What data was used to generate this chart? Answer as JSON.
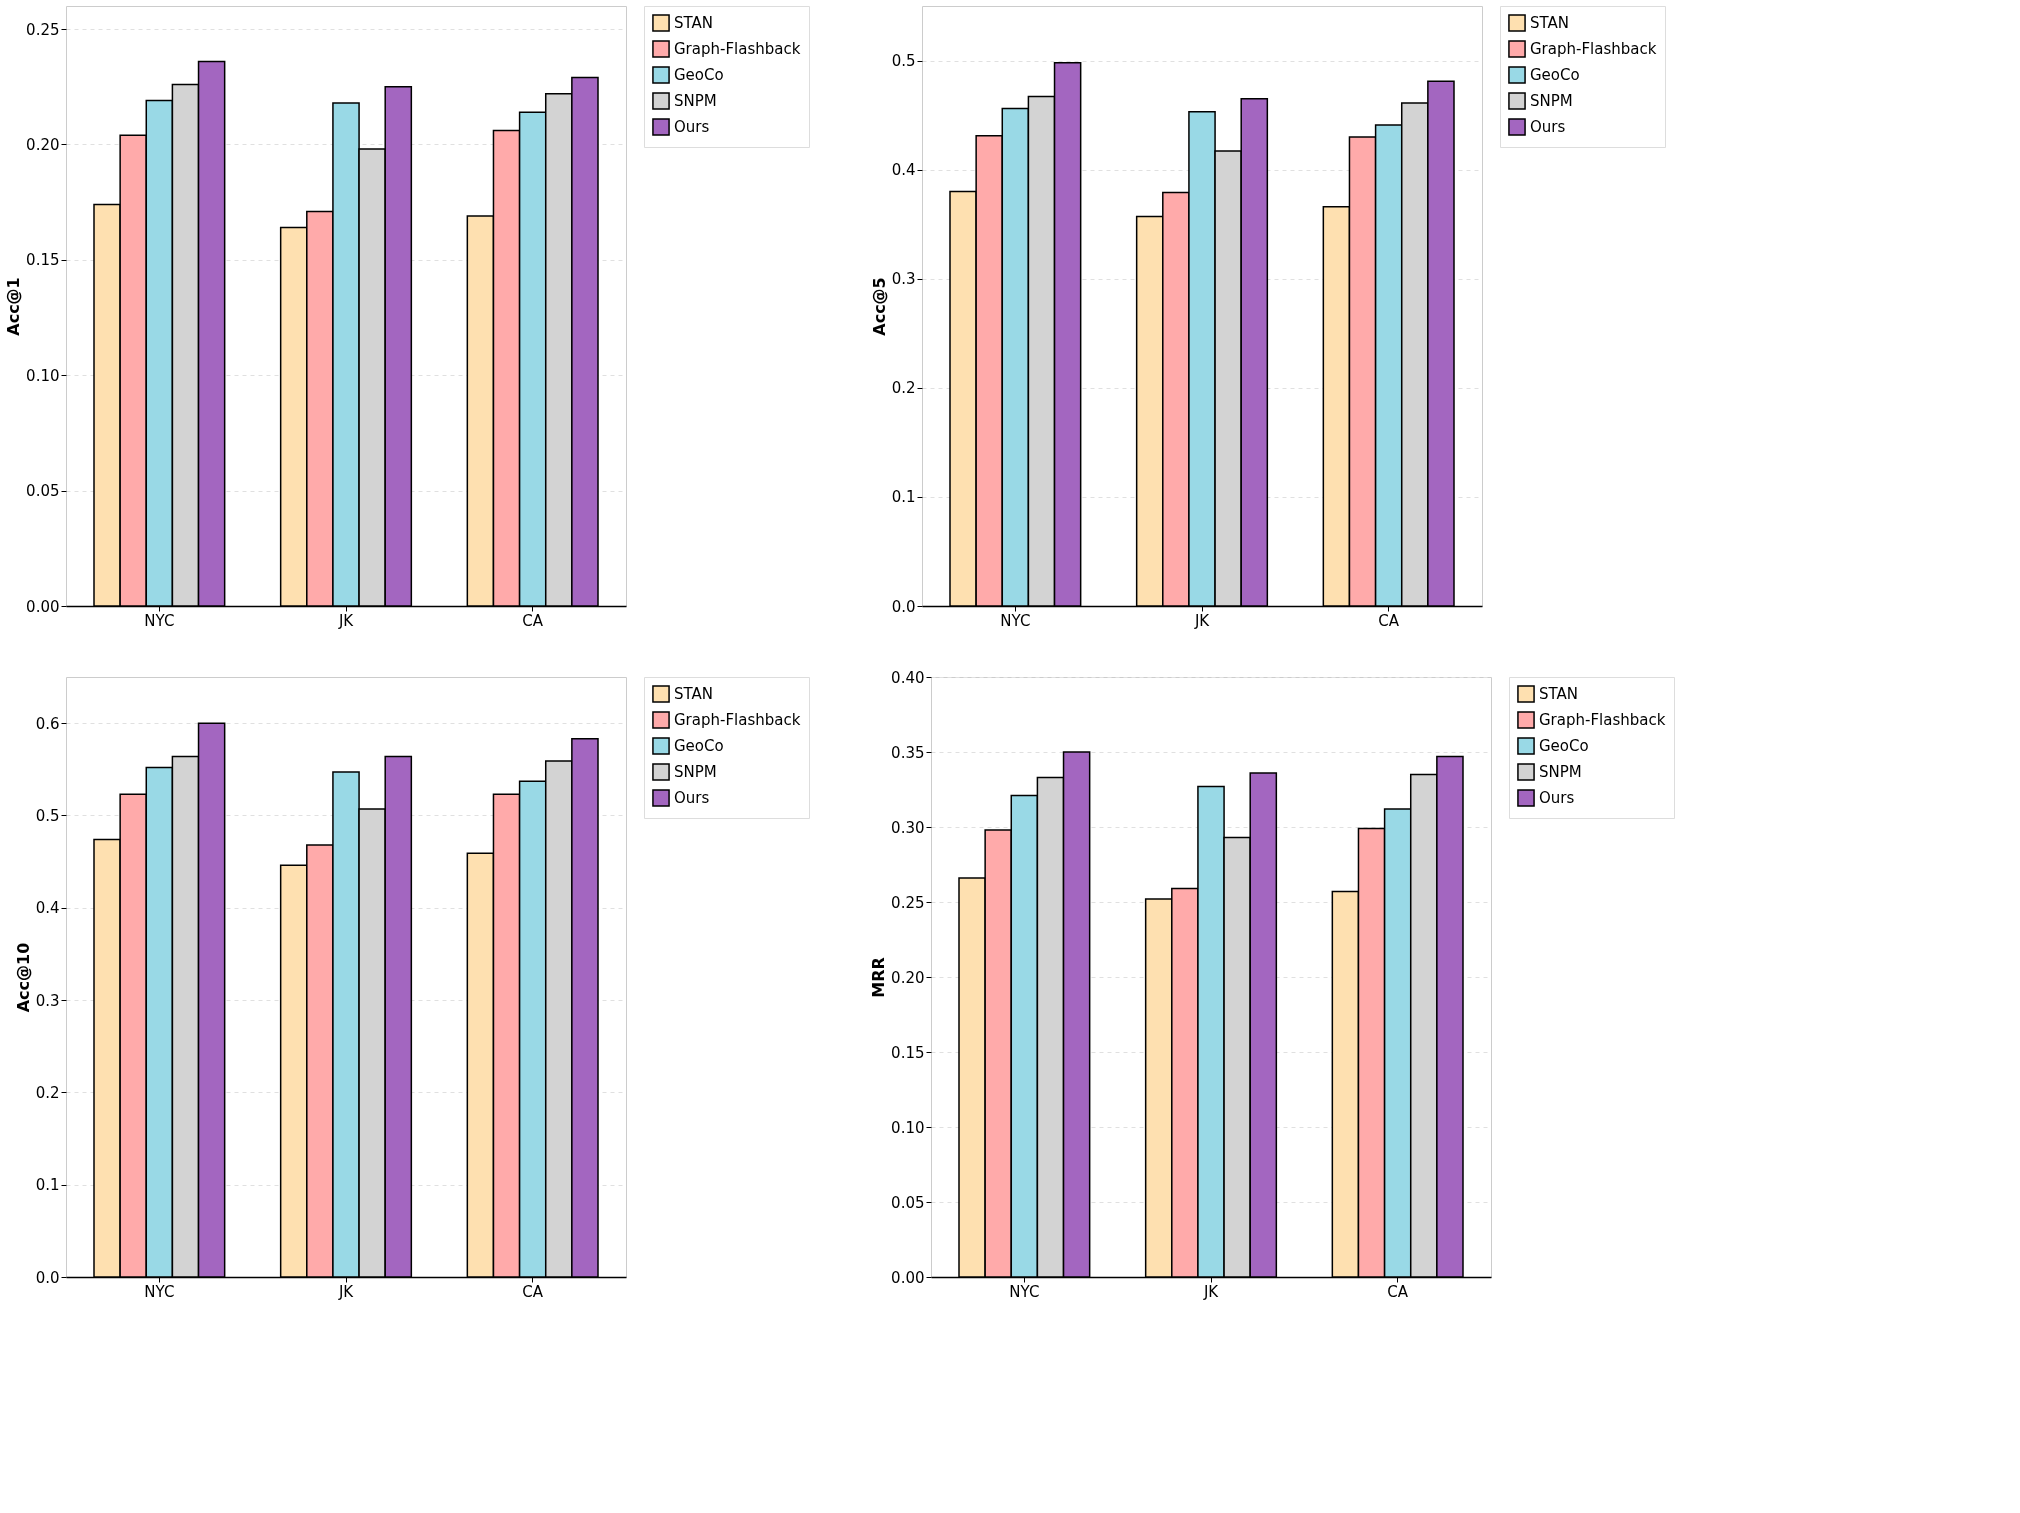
{
  "chart_data": [
    {
      "type": "bar",
      "ylabel": "Acc@1",
      "categories": [
        "NYC",
        "JK",
        "CA"
      ],
      "ylim": [
        0,
        0.26
      ],
      "yticks": [
        {
          "value": 0,
          "label": "0.00"
        },
        0.05,
        {
          "value": 0.1,
          "label": "0.10"
        },
        0.15,
        {
          "value": 0.2,
          "label": "0.20"
        },
        0.25
      ],
      "grid": "y",
      "legend": "right",
      "series": [
        {
          "name": "STAN",
          "color": "#fee0b0",
          "values": [
            0.174,
            0.164,
            0.169
          ]
        },
        {
          "name": "Graph-Flashback",
          "color": "#ffaaaa",
          "values": [
            0.204,
            0.171,
            0.206
          ]
        },
        {
          "name": "GeoCo",
          "color": "#99d9e6",
          "values": [
            0.219,
            0.218,
            0.214
          ]
        },
        {
          "name": "SNPM",
          "color": "#d3d3d3",
          "values": [
            0.226,
            0.198,
            0.222
          ]
        },
        {
          "name": "Ours",
          "color": "#a366c0",
          "values": [
            0.236,
            0.225,
            0.229
          ]
        }
      ]
    },
    {
      "type": "bar",
      "ylabel": "Acc@5",
      "categories": [
        "NYC",
        "JK",
        "CA"
      ],
      "ylim": [
        0,
        0.55
      ],
      "yticks": [
        {
          "value": 0,
          "label": "0.0"
        },
        0.1,
        0.2,
        0.3,
        0.4,
        0.5
      ],
      "grid": "y",
      "legend": "right",
      "series": [
        {
          "name": "STAN",
          "color": "#fee0b0",
          "values": [
            0.38,
            0.357,
            0.366
          ]
        },
        {
          "name": "Graph-Flashback",
          "color": "#ffaaaa",
          "values": [
            0.431,
            0.379,
            0.43
          ]
        },
        {
          "name": "GeoCo",
          "color": "#99d9e6",
          "values": [
            0.456,
            0.453,
            0.441
          ]
        },
        {
          "name": "SNPM",
          "color": "#d3d3d3",
          "values": [
            0.467,
            0.417,
            0.461
          ]
        },
        {
          "name": "Ours",
          "color": "#a366c0",
          "values": [
            0.498,
            0.465,
            0.481
          ]
        }
      ]
    },
    {
      "type": "bar",
      "ylabel": "Acc@10",
      "categories": [
        "NYC",
        "JK",
        "CA"
      ],
      "ylim": [
        0,
        0.65
      ],
      "yticks": [
        {
          "value": 0,
          "label": "0.0"
        },
        0.1,
        0.2,
        0.3,
        0.4,
        0.5,
        0.6
      ],
      "grid": "y",
      "legend": "right",
      "series": [
        {
          "name": "STAN",
          "color": "#fee0b0",
          "values": [
            0.474,
            0.446,
            0.459
          ]
        },
        {
          "name": "Graph-Flashback",
          "color": "#ffaaaa",
          "values": [
            0.523,
            0.468,
            0.523
          ]
        },
        {
          "name": "GeoCo",
          "color": "#99d9e6",
          "values": [
            0.552,
            0.547,
            0.537
          ]
        },
        {
          "name": "SNPM",
          "color": "#d3d3d3",
          "values": [
            0.564,
            0.507,
            0.559
          ]
        },
        {
          "name": "Ours",
          "color": "#a366c0",
          "values": [
            0.6,
            0.564,
            0.583
          ]
        }
      ]
    },
    {
      "type": "bar",
      "ylabel": "MRR",
      "categories": [
        "NYC",
        "JK",
        "CA"
      ],
      "ylim": [
        0,
        0.4
      ],
      "yticks": [
        {
          "value": 0,
          "label": "0.00"
        },
        0.05,
        {
          "value": 0.1,
          "label": "0.10"
        },
        0.15,
        {
          "value": 0.2,
          "label": "0.20"
        },
        0.25,
        {
          "value": 0.3,
          "label": "0.30"
        },
        0.35,
        {
          "value": 0.4,
          "label": "0.40"
        }
      ],
      "grid": "y",
      "legend": "right",
      "series": [
        {
          "name": "STAN",
          "color": "#fee0b0",
          "values": [
            0.266,
            0.252,
            0.257
          ]
        },
        {
          "name": "Graph-Flashback",
          "color": "#ffaaaa",
          "values": [
            0.298,
            0.259,
            0.299
          ]
        },
        {
          "name": "GeoCo",
          "color": "#99d9e6",
          "values": [
            0.321,
            0.327,
            0.312
          ]
        },
        {
          "name": "SNPM",
          "color": "#d3d3d3",
          "values": [
            0.333,
            0.293,
            0.335
          ]
        },
        {
          "name": "Ours",
          "color": "#a366c0",
          "values": [
            0.35,
            0.336,
            0.347
          ]
        }
      ]
    }
  ]
}
